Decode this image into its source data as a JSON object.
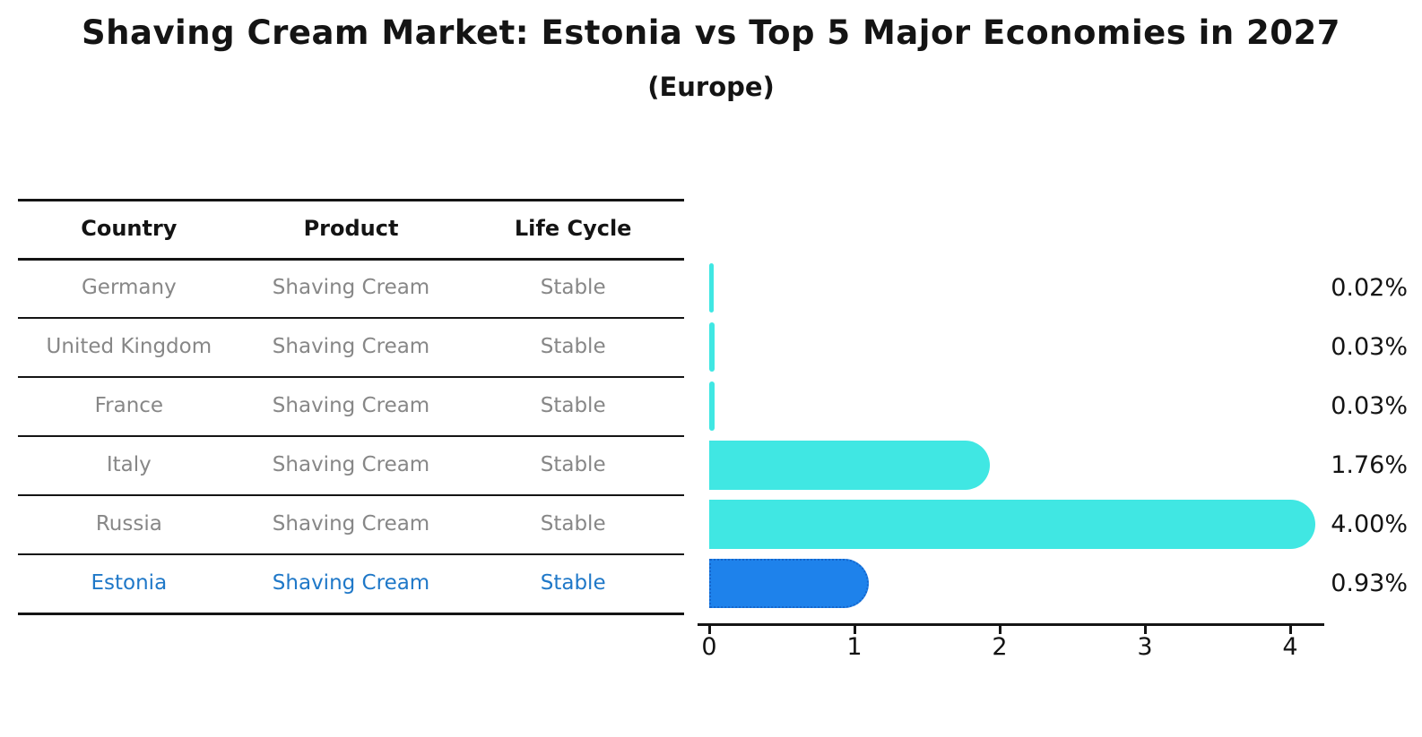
{
  "title": "Shaving Cream Market: Estonia vs Top 5 Major Economies in 2027",
  "subtitle": "(Europe)",
  "table": {
    "headers": [
      "Country",
      "Product",
      "Life Cycle"
    ],
    "rows": [
      {
        "country": "Germany",
        "product": "Shaving Cream",
        "life_cycle": "Stable",
        "highlight": false
      },
      {
        "country": "United Kingdom",
        "product": "Shaving Cream",
        "life_cycle": "Stable",
        "highlight": false
      },
      {
        "country": "France",
        "product": "Shaving Cream",
        "life_cycle": "Stable",
        "highlight": false
      },
      {
        "country": "Italy",
        "product": "Shaving Cream",
        "life_cycle": "Stable",
        "highlight": false
      },
      {
        "country": "Russia",
        "product": "Shaving Cream",
        "life_cycle": "Stable",
        "highlight": false
      },
      {
        "country": "Estonia",
        "product": "Shaving Cream",
        "life_cycle": "Stable",
        "highlight": true
      }
    ]
  },
  "chart_data": {
    "type": "bar",
    "orientation": "horizontal",
    "title": "Shaving Cream Market: Estonia vs Top 5 Major Economies in 2027",
    "subtitle": "(Europe)",
    "categories": [
      "Germany",
      "United Kingdom",
      "France",
      "Italy",
      "Russia",
      "Estonia"
    ],
    "values": [
      0.02,
      0.03,
      0.03,
      1.76,
      4.0,
      0.93
    ],
    "value_labels": [
      "0.02%",
      "0.03%",
      "0.03%",
      "1.76%",
      "4.00%",
      "0.93%"
    ],
    "x_ticks": [
      "0",
      "1",
      "2",
      "3",
      "4"
    ],
    "xlim": [
      -0.08,
      4.24
    ],
    "xlabel": "",
    "ylabel": "",
    "grid": false,
    "legend": false,
    "bar_color": "#40e7e3",
    "highlight_index": 5,
    "highlight_color": "#1e82eb",
    "highlight_border_color": "#1566cc"
  },
  "colors": {
    "text": "#141414",
    "text_muted": "#878787",
    "highlight_text": "#1f78c8",
    "line": "#141414"
  }
}
